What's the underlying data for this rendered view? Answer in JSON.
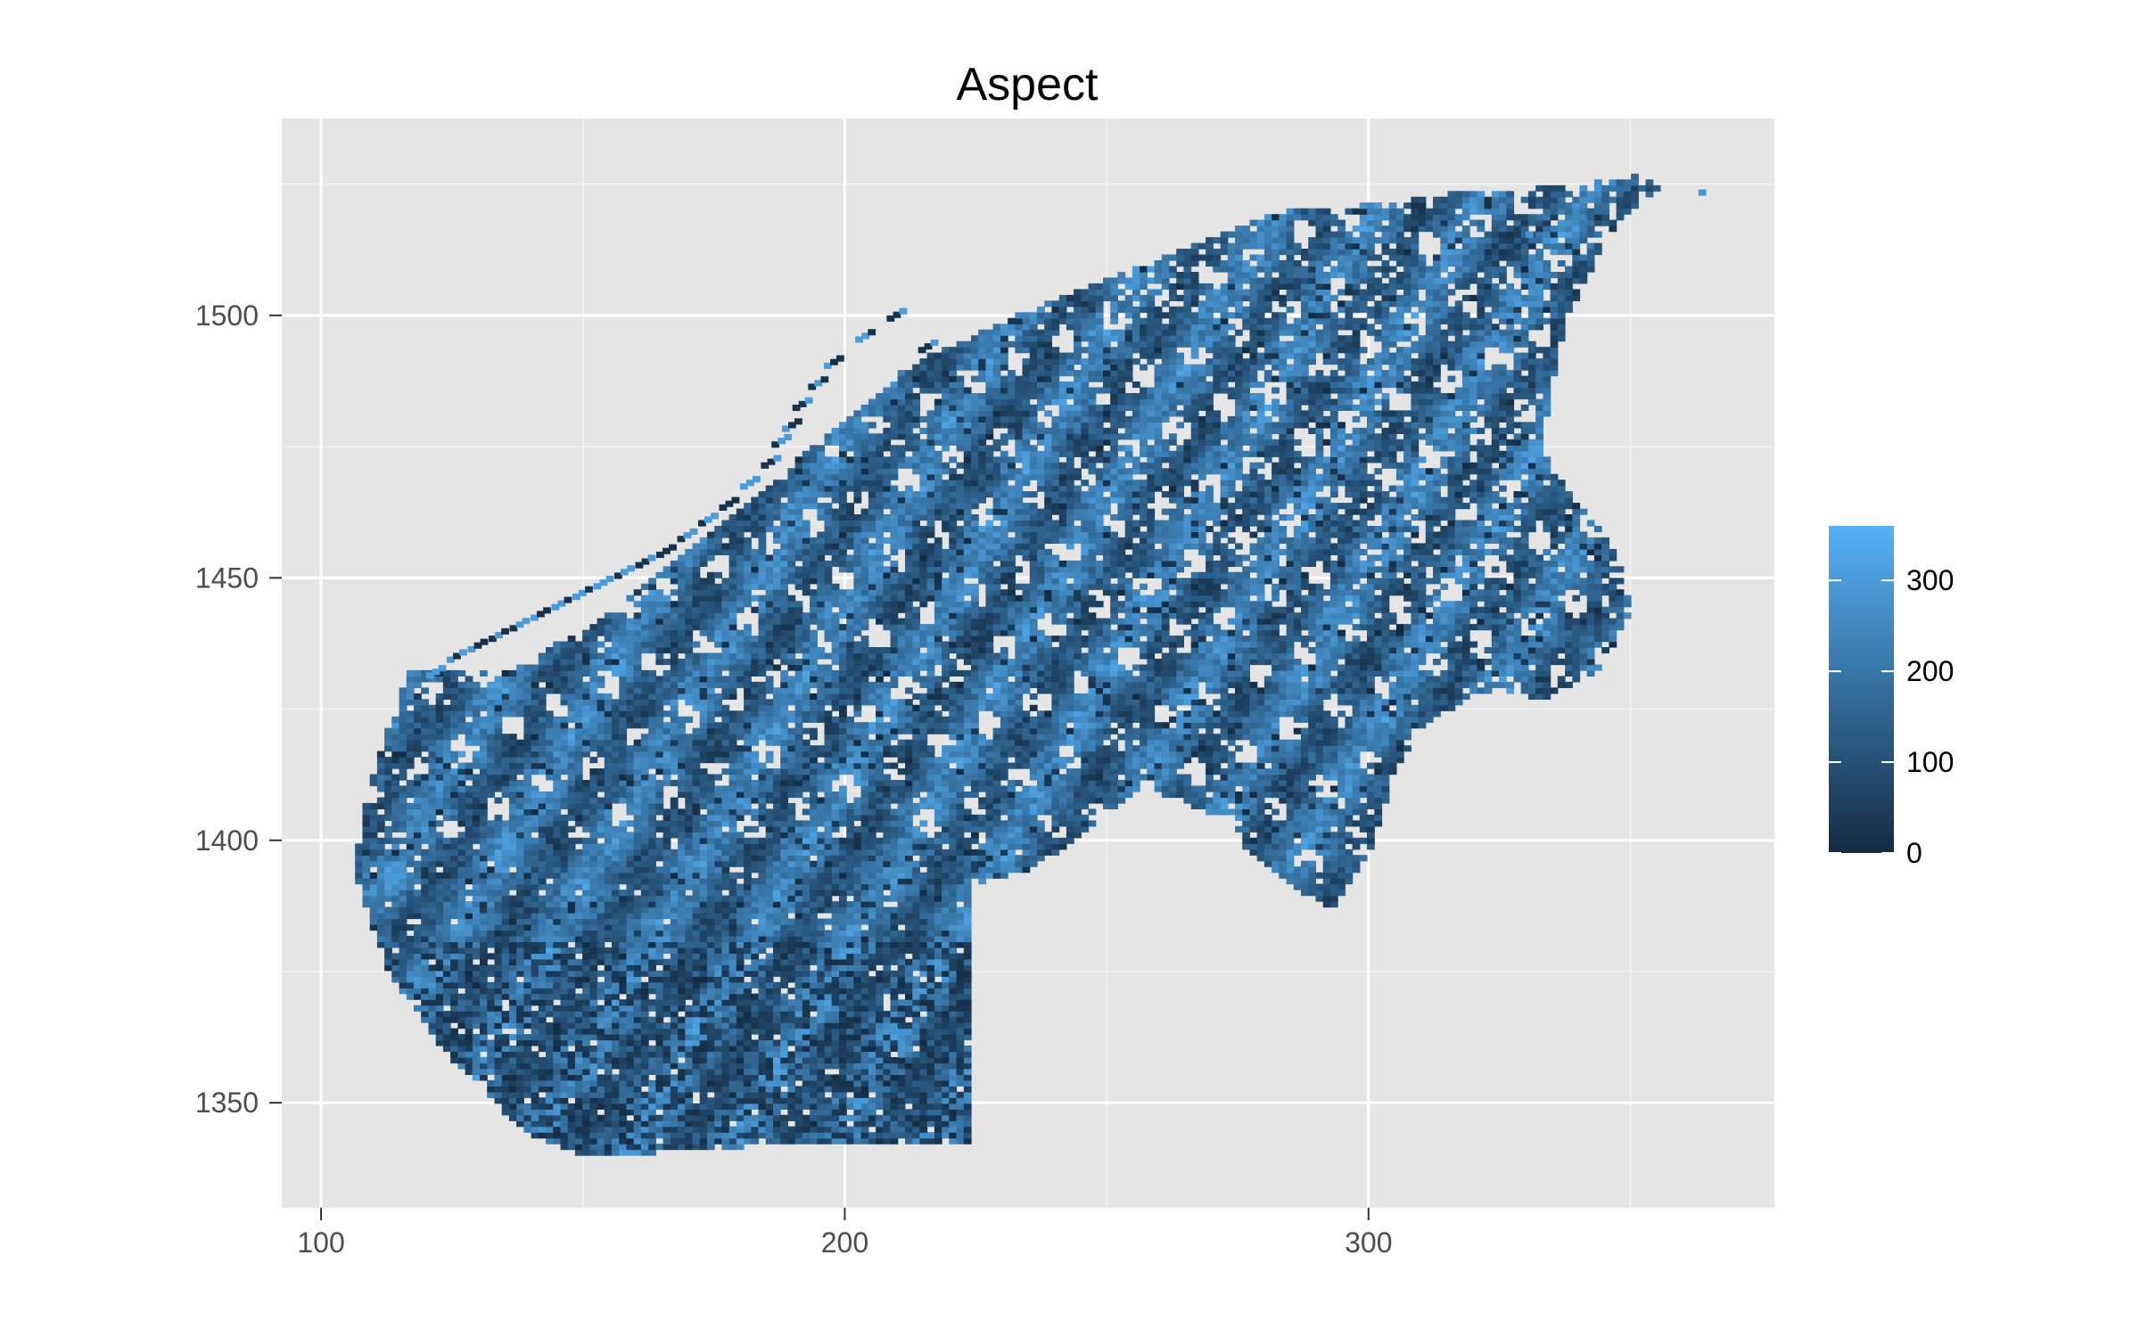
{
  "chart_data": {
    "type": "heatmap",
    "title": "Aspect",
    "xlabel": "",
    "ylabel": "",
    "xlim": [
      92.5,
      377.5
    ],
    "ylim": [
      1330,
      1537.5
    ],
    "x_ticks": [
      100,
      200,
      300
    ],
    "x_tick_labels": [
      "100",
      "200",
      "300"
    ],
    "y_ticks": [
      1350,
      1400,
      1450,
      1500
    ],
    "y_tick_labels": [
      "1350",
      "1400",
      "1450",
      "1500"
    ],
    "grid": true,
    "legend": {
      "position": "right",
      "title": "",
      "min": 0,
      "max": 360,
      "breaks": [
        0,
        100,
        200,
        300
      ],
      "break_labels": [
        "0",
        "100",
        "200",
        "300"
      ],
      "low_color": "#132B43",
      "high_color": "#56B1F7"
    },
    "region_outline": [
      [
        107,
        1405
      ],
      [
        116,
        1432
      ],
      [
        134,
        1431
      ],
      [
        152,
        1441
      ],
      [
        170,
        1455
      ],
      [
        193,
        1474
      ],
      [
        212,
        1490
      ],
      [
        238,
        1502
      ],
      [
        262,
        1511
      ],
      [
        282,
        1519
      ],
      [
        305,
        1521
      ],
      [
        318,
        1523
      ],
      [
        339,
        1524
      ],
      [
        350,
        1526
      ],
      [
        356,
        1524
      ],
      [
        346,
        1516
      ],
      [
        337,
        1499
      ],
      [
        332,
        1474
      ],
      [
        339,
        1464
      ],
      [
        346,
        1455
      ],
      [
        350,
        1445
      ],
      [
        344,
        1432
      ],
      [
        332,
        1426
      ],
      [
        320,
        1428
      ],
      [
        310,
        1421
      ],
      [
        304,
        1412
      ],
      [
        300,
        1398
      ],
      [
        292,
        1386
      ],
      [
        280,
        1394
      ],
      [
        270,
        1404
      ],
      [
        256,
        1410
      ],
      [
        244,
        1400
      ],
      [
        235,
        1394
      ],
      [
        224,
        1391
      ],
      [
        224,
        1342
      ],
      [
        180,
        1341
      ],
      [
        150,
        1339
      ],
      [
        138,
        1344
      ],
      [
        122,
        1360
      ],
      [
        112,
        1375
      ],
      [
        106,
        1392
      ]
    ],
    "coast_points": [
      [
        120,
        1432
      ],
      [
        124,
        1435
      ],
      [
        128,
        1437
      ],
      [
        132,
        1439
      ],
      [
        136,
        1441
      ],
      [
        140,
        1443
      ],
      [
        144,
        1445
      ],
      [
        148,
        1447
      ],
      [
        152,
        1449
      ],
      [
        156,
        1451
      ],
      [
        160,
        1453
      ],
      [
        164,
        1455
      ],
      [
        168,
        1458
      ],
      [
        172,
        1461
      ],
      [
        176,
        1464
      ],
      [
        180,
        1468
      ],
      [
        184,
        1472
      ],
      [
        186,
        1476
      ],
      [
        188,
        1479
      ],
      [
        190,
        1483
      ],
      [
        193,
        1487
      ],
      [
        196,
        1491
      ],
      [
        202,
        1496
      ],
      [
        208,
        1500
      ],
      [
        214,
        1494
      ]
    ],
    "outliers": [
      [
        363,
        1524
      ],
      [
        330,
        1516
      ]
    ],
    "cell_size": [
      1.4,
      1.1
    ]
  }
}
